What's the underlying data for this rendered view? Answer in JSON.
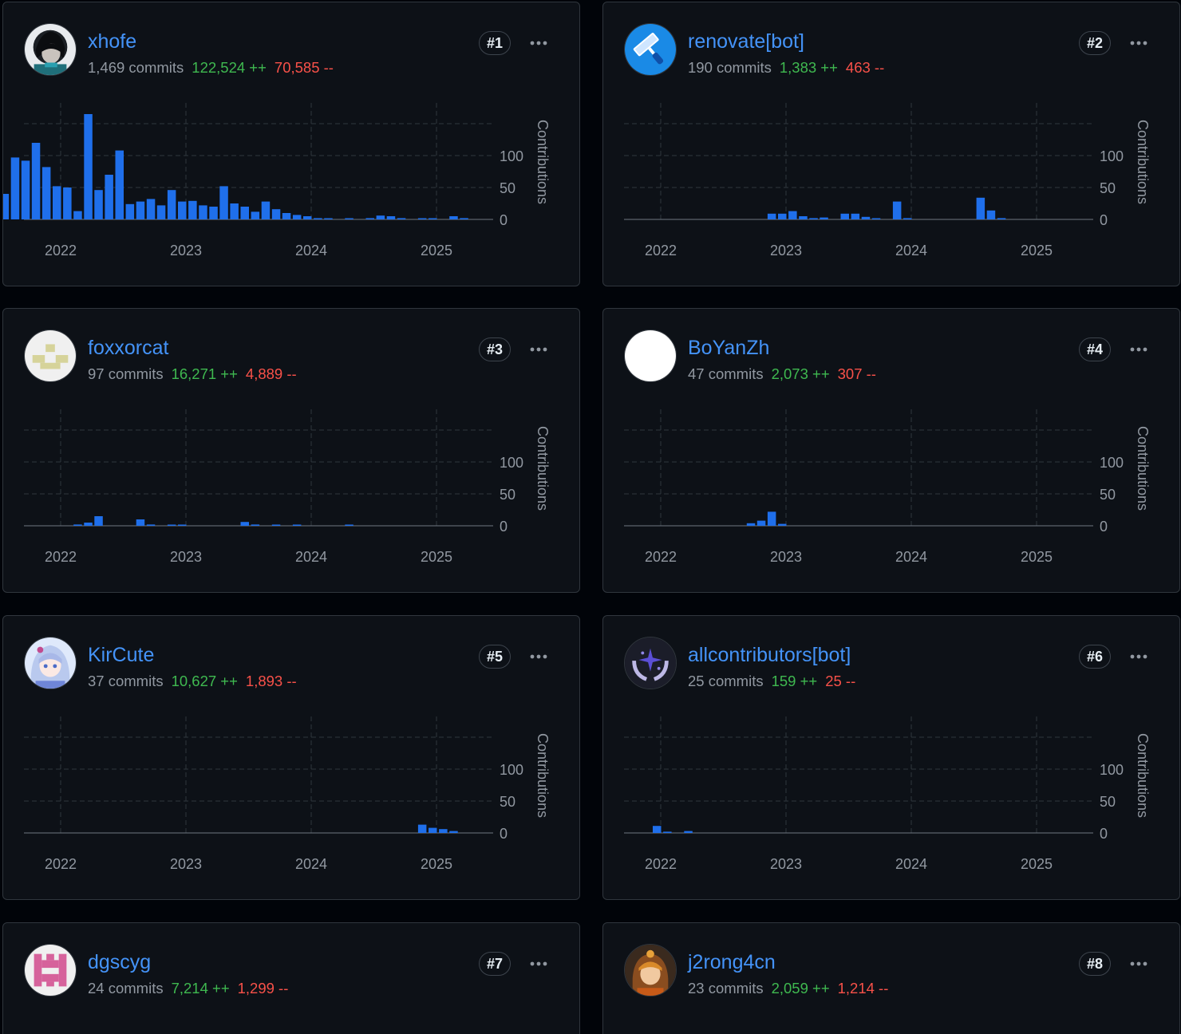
{
  "contributors": [
    {
      "login": "xhofe",
      "commits": "1,469 commits",
      "additions": "122,524 ++",
      "deletions": "70,585 --",
      "rank": "#1",
      "avatar_icon": "dark-anime-avatar-icon",
      "chart_data": {
        "type": "bar",
        "ylabel": "Contributions",
        "yticks": [
          "0",
          "50",
          "100"
        ],
        "xticks": [
          "2022",
          "2023",
          "2024",
          "2025"
        ],
        "ylim": [
          0,
          165
        ],
        "x": [
          "2021-08",
          "2021-09",
          "2021-10",
          "2021-11",
          "2021-12",
          "2022-01",
          "2022-02",
          "2022-03",
          "2022-04",
          "2022-05",
          "2022-06",
          "2022-07",
          "2022-08",
          "2022-09",
          "2022-10",
          "2022-11",
          "2022-12",
          "2023-01",
          "2023-02",
          "2023-03",
          "2023-04",
          "2023-05",
          "2023-06",
          "2023-07",
          "2023-08",
          "2023-09",
          "2023-10",
          "2023-11",
          "2023-12",
          "2024-01",
          "2024-02",
          "2024-03",
          "2024-05",
          "2024-07",
          "2024-08",
          "2024-09",
          "2024-10",
          "2024-12",
          "2025-01",
          "2025-03",
          "2025-04"
        ],
        "values": [
          40,
          97,
          92,
          120,
          82,
          52,
          50,
          13,
          165,
          46,
          70,
          108,
          24,
          28,
          32,
          22,
          46,
          28,
          29,
          22,
          20,
          52,
          25,
          20,
          12,
          28,
          16,
          10,
          7,
          5,
          2,
          1,
          1,
          2,
          6,
          5,
          2,
          1,
          1,
          5,
          2
        ]
      }
    },
    {
      "login": "renovate[bot]",
      "commits": "190 commits",
      "additions": "1,383 ++",
      "deletions": "463 --",
      "rank": "#2",
      "avatar_icon": "paint-roller-bot-icon",
      "chart_data": {
        "type": "bar",
        "ylabel": "Contributions",
        "yticks": [
          "0",
          "50",
          "100"
        ],
        "xticks": [
          "2022",
          "2023",
          "2024",
          "2025"
        ],
        "ylim": [
          0,
          165
        ],
        "x": [
          "2022-12",
          "2023-01",
          "2023-02",
          "2023-03",
          "2023-04",
          "2023-05",
          "2023-07",
          "2023-08",
          "2023-09",
          "2023-10",
          "2023-12",
          "2024-01",
          "2024-08",
          "2024-09",
          "2024-10"
        ],
        "values": [
          9,
          9,
          13,
          5,
          2,
          3,
          9,
          9,
          4,
          1,
          28,
          2,
          34,
          14,
          2
        ]
      }
    },
    {
      "login": "foxxorcat",
      "commits": "97 commits",
      "additions": "16,271 ++",
      "deletions": "4,889 --",
      "rank": "#3",
      "avatar_icon": "identicon-avatar-icon",
      "chart_data": {
        "type": "bar",
        "ylabel": "Contributions",
        "yticks": [
          "0",
          "50",
          "100"
        ],
        "xticks": [
          "2022",
          "2023",
          "2024",
          "2025"
        ],
        "ylim": [
          0,
          165
        ],
        "x": [
          "2022-03",
          "2022-04",
          "2022-05",
          "2022-09",
          "2022-10",
          "2022-12",
          "2023-01",
          "2023-07",
          "2023-08",
          "2023-10",
          "2023-12",
          "2024-05"
        ],
        "values": [
          2,
          5,
          15,
          10,
          2,
          1,
          1,
          6,
          2,
          1,
          1,
          1
        ]
      }
    },
    {
      "login": "BoYanZh",
      "commits": "47 commits",
      "additions": "2,073 ++",
      "deletions": "307 --",
      "rank": "#4",
      "avatar_icon": "blank-avatar-icon",
      "chart_data": {
        "type": "bar",
        "ylabel": "Contributions",
        "yticks": [
          "0",
          "50",
          "100"
        ],
        "xticks": [
          "2022",
          "2023",
          "2024",
          "2025"
        ],
        "ylim": [
          0,
          165
        ],
        "x": [
          "2022-10",
          "2022-11",
          "2022-12",
          "2023-01"
        ],
        "values": [
          4,
          8,
          22,
          3
        ]
      }
    },
    {
      "login": "KirCute",
      "commits": "37 commits",
      "additions": "10,627 ++",
      "deletions": "1,893 --",
      "rank": "#5",
      "avatar_icon": "anime-girl-avatar-icon",
      "chart_data": {
        "type": "bar",
        "ylabel": "Contributions",
        "yticks": [
          "0",
          "50",
          "100"
        ],
        "xticks": [
          "2022",
          "2023",
          "2024",
          "2025"
        ],
        "ylim": [
          0,
          165
        ],
        "x": [
          "2024-12",
          "2025-01",
          "2025-02",
          "2025-03"
        ],
        "values": [
          13,
          8,
          6,
          3
        ]
      }
    },
    {
      "login": "allcontributors[bot]",
      "commits": "25 commits",
      "additions": "159 ++",
      "deletions": "25 --",
      "rank": "#6",
      "avatar_icon": "laurel-stars-avatar-icon",
      "chart_data": {
        "type": "bar",
        "ylabel": "Contributions",
        "yticks": [
          "0",
          "50",
          "100"
        ],
        "xticks": [
          "2022",
          "2023",
          "2024",
          "2025"
        ],
        "ylim": [
          0,
          165
        ],
        "x": [
          "2022-01",
          "2022-02",
          "2022-04"
        ],
        "values": [
          11,
          2,
          3
        ]
      }
    },
    {
      "login": "dgscyg",
      "commits": "24 commits",
      "additions": "7,214 ++",
      "deletions": "1,299 --",
      "rank": "#7",
      "avatar_icon": "pink-identicon-avatar-icon"
    },
    {
      "login": "j2rong4cn",
      "commits": "23 commits",
      "additions": "2,059 ++",
      "deletions": "1,214 --",
      "rank": "#8",
      "avatar_icon": "anime-boy-avatar-icon"
    }
  ],
  "colors": {
    "bar": "#1f6feb",
    "link": "#4493f8",
    "additions": "#3fb950",
    "deletions": "#f85149",
    "muted": "#9198a1",
    "card_bg": "#0d1117",
    "border": "#30363d"
  },
  "more_icon": "kebab-horizontal-icon"
}
